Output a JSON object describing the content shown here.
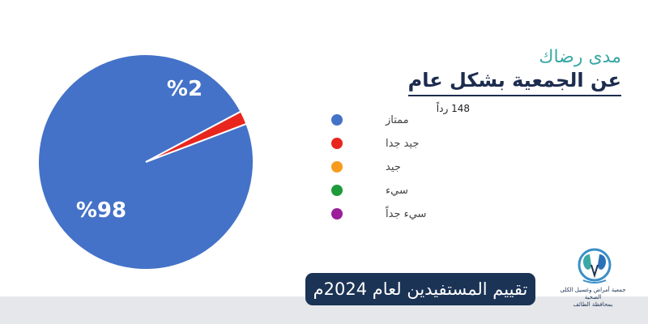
{
  "heading": {
    "subtitle": "مدى رضاك",
    "title": "عن الجمعية بشكل عام"
  },
  "responses_label": "148 رداً",
  "banner_text": "تقييم المستفيدين لعام 2024م",
  "logo": {
    "line1": "جمعية أمراض وغسيل الكلى الصحية",
    "line2": "بمحافظة الطائف"
  },
  "chart_data": {
    "type": "pie",
    "categories": [
      "ممتاز",
      "جيد جدا",
      "جيد",
      "سيء",
      "سيء جداً"
    ],
    "values": [
      98,
      2,
      0,
      0,
      0
    ],
    "value_labels": [
      "%98",
      "%2",
      "",
      "",
      ""
    ],
    "colors": [
      "#4472c8",
      "#e8261e",
      "#f79b1e",
      "#1e9a3b",
      "#9b1e9a"
    ],
    "legend_position": "right"
  }
}
